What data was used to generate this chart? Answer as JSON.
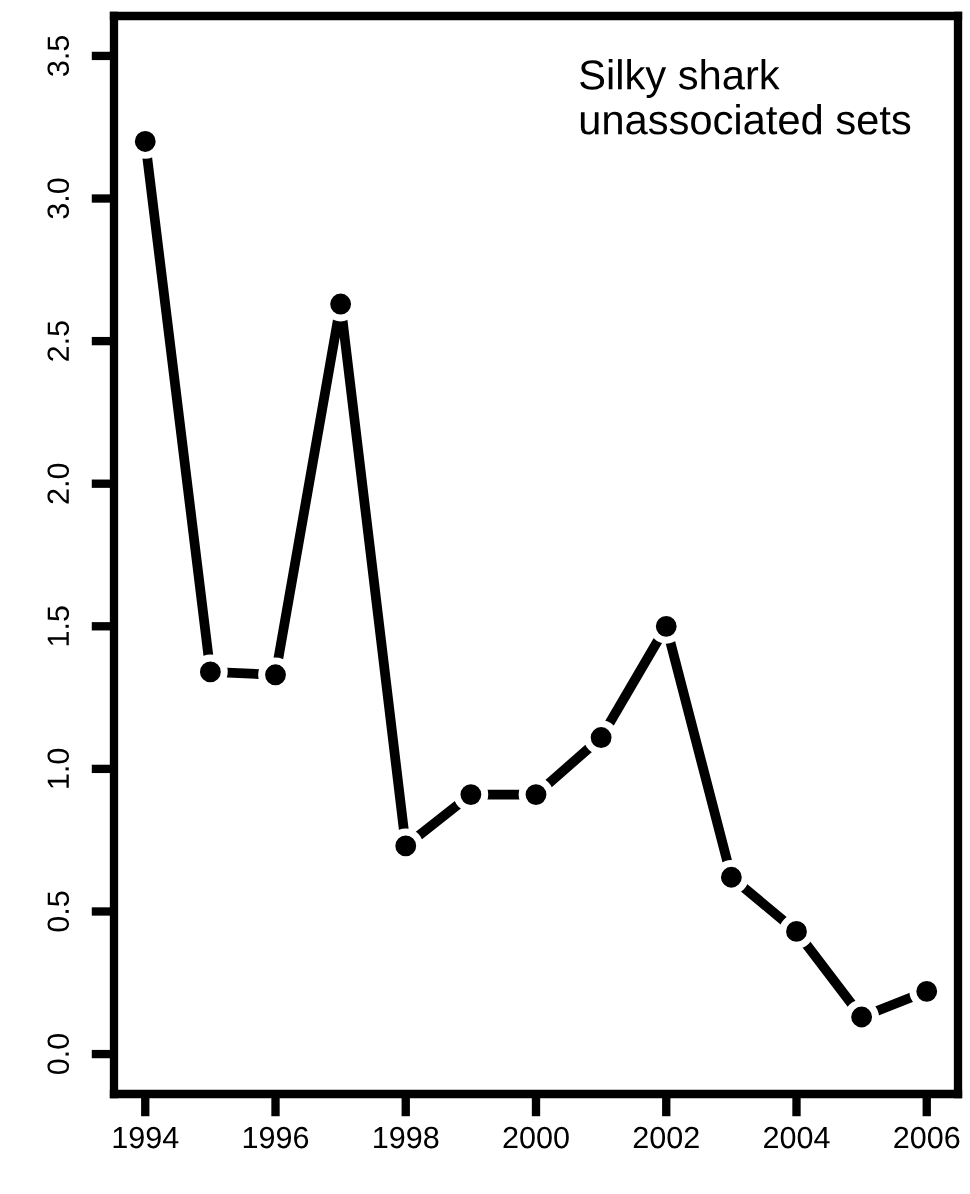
{
  "chart_data": {
    "type": "line",
    "annotations": [
      "Silky shark\nunassociated sets"
    ],
    "x": [
      1994,
      1995,
      1996,
      1997,
      1998,
      1999,
      2000,
      2001,
      2002,
      2003,
      2004,
      2005,
      2006
    ],
    "series": [
      {
        "color": "#000000",
        "values": [
          3.2,
          1.34,
          1.33,
          2.63,
          0.73,
          0.91,
          0.91,
          1.11,
          1.5,
          0.62,
          0.43,
          0.13,
          0.22
        ]
      }
    ],
    "xlim": [
      1993.52,
      2006.48
    ],
    "ylim": [
      -0.14,
      3.64
    ],
    "xticks": [
      1994,
      1996,
      1998,
      2000,
      2002,
      2004,
      2006
    ],
    "yticks": [
      {
        "value": 0,
        "label": "0.0"
      },
      {
        "value": 0.5,
        "label": "0.5"
      },
      {
        "value": 1,
        "label": "1.0"
      },
      {
        "value": 1.5,
        "label": "1.5"
      },
      {
        "value": 2,
        "label": "2.0"
      },
      {
        "value": 2.5,
        "label": "2.5"
      },
      {
        "value": 3,
        "label": "3.0"
      },
      {
        "value": 3.5,
        "label": "3.5"
      }
    ],
    "grid": false,
    "legend": false,
    "marker": "circle",
    "line_style": "solid"
  }
}
